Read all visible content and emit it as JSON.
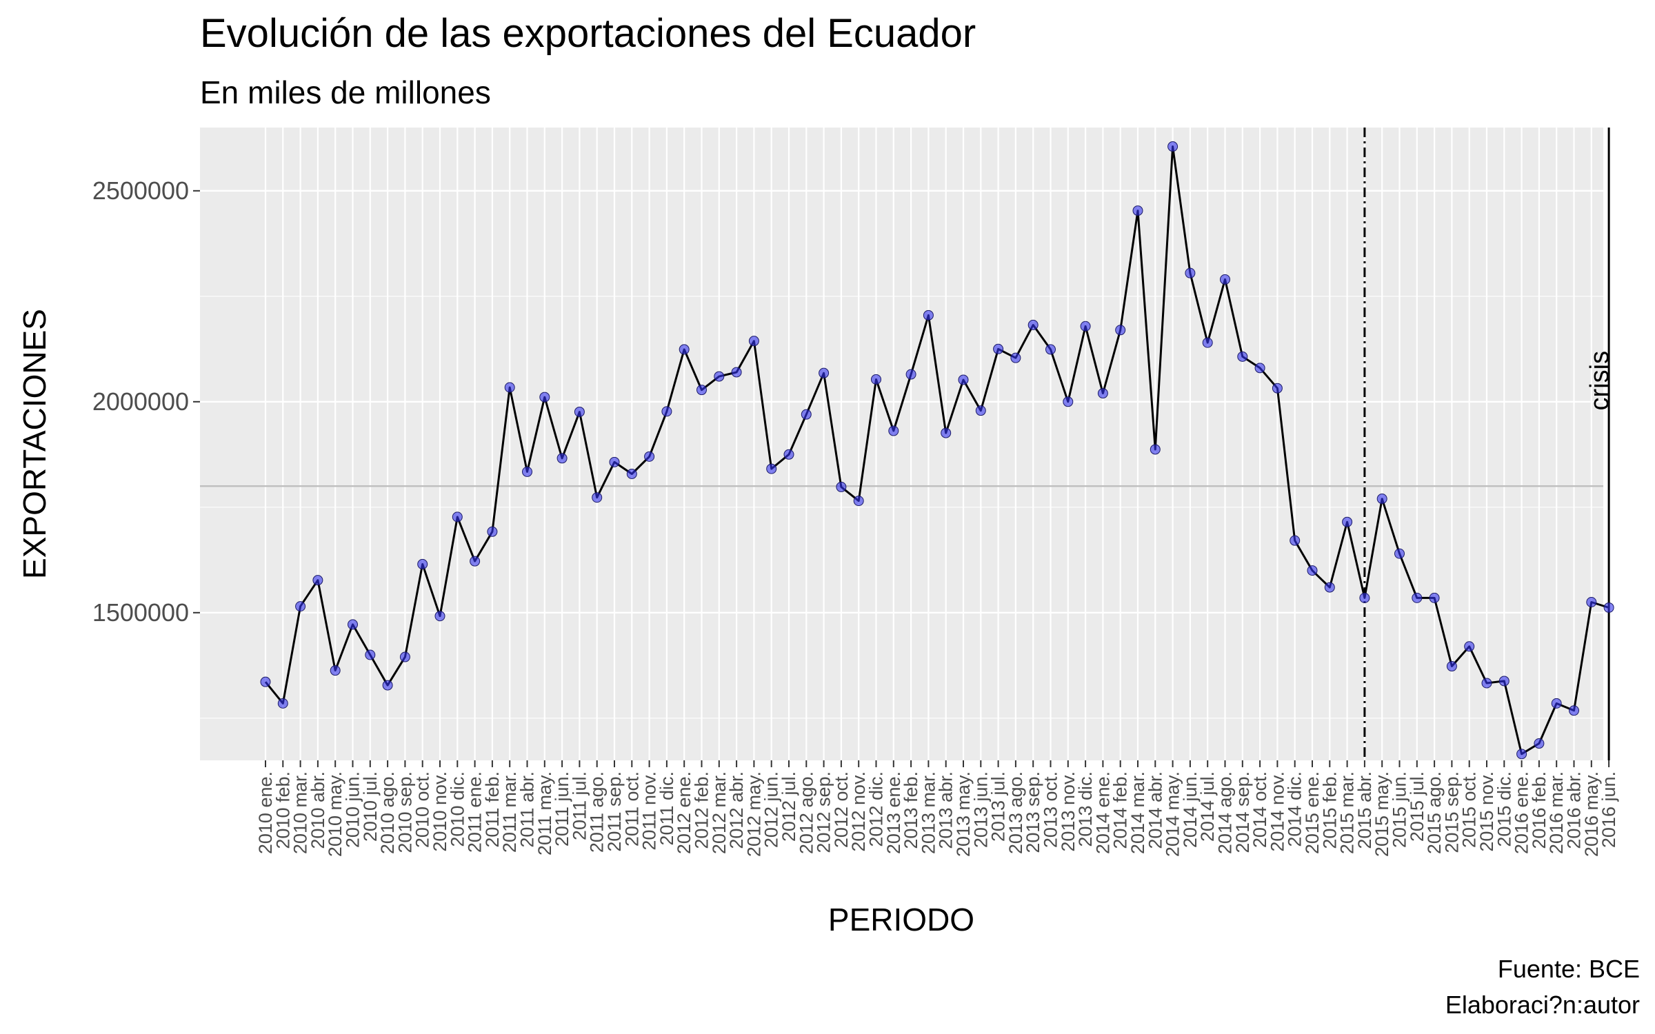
{
  "chart_data": {
    "type": "line",
    "title": "Evolución de las exportaciones del Ecuador",
    "subtitle": "En miles de millones",
    "xlabel": "PERIODO",
    "ylabel": "EXPORTACIONES",
    "caption": [
      "Fuente: BCE",
      "Elaboraci?n:autor"
    ],
    "ylim": [
      1150000,
      2650000
    ],
    "yticks": [
      1500000,
      2000000,
      2500000
    ],
    "ytick_labels": [
      "1500000",
      "2000000",
      "2500000"
    ],
    "grid": true,
    "categories": [
      "2010 ene.",
      "2010 feb.",
      "2010 mar.",
      "2010 abr.",
      "2010 may.",
      "2010 jun.",
      "2010 jul.",
      "2010 ago.",
      "2010 sep.",
      "2010 oct.",
      "2010 nov.",
      "2010 dic.",
      "2011 ene.",
      "2011 feb.",
      "2011 mar.",
      "2011 abr.",
      "2011 may.",
      "2011 jun.",
      "2011 jul.",
      "2011 ago.",
      "2011 sep.",
      "2011 oct.",
      "2011 nov.",
      "2011 dic.",
      "2012 ene.",
      "2012 feb.",
      "2012 mar.",
      "2012 abr.",
      "2012 may.",
      "2012 jun.",
      "2012 jul.",
      "2012 ago.",
      "2012 sep.",
      "2012 oct.",
      "2012 nov.",
      "2012 dic.",
      "2013 ene.",
      "2013 feb.",
      "2013 mar.",
      "2013 abr.",
      "2013 may.",
      "2013 jun.",
      "2013 jul.",
      "2013 ago.",
      "2013 sep.",
      "2013 oct.",
      "2013 nov.",
      "2013 dic.",
      "2014 ene.",
      "2014 feb.",
      "2014 mar.",
      "2014 abr.",
      "2014 may.",
      "2014 jun.",
      "2014 jul.",
      "2014 ago.",
      "2014 sep.",
      "2014 oct.",
      "2014 nov.",
      "2014 dic.",
      "2015 ene.",
      "2015 feb.",
      "2015 mar.",
      "2015 abr.",
      "2015 may.",
      "2015 jun.",
      "2015 jul.",
      "2015 ago.",
      "2015 sep.",
      "2015 oct.",
      "2015 nov.",
      "2015 dic.",
      "2016 ene.",
      "2016 feb.",
      "2016 mar.",
      "2016 abr.",
      "2016 may.",
      "2016 jun."
    ],
    "values": [
      1336000,
      1285000,
      1515000,
      1577000,
      1363000,
      1472000,
      1400000,
      1328000,
      1395000,
      1615000,
      1492000,
      1727000,
      1622000,
      1692000,
      2034000,
      1834000,
      2011000,
      1866000,
      1976000,
      1773000,
      1857000,
      1829000,
      1870000,
      1977000,
      2124000,
      2028000,
      2060000,
      2070000,
      2144000,
      1841000,
      1875000,
      1970000,
      2068000,
      1798000,
      1765000,
      2053000,
      1931000,
      2065000,
      2205000,
      1926000,
      2052000,
      1979000,
      2125000,
      2104000,
      2182000,
      2124000,
      2000000,
      2179000,
      2020000,
      2170000,
      2453000,
      1887000,
      2605000,
      2305000,
      2140000,
      2290000,
      2107000,
      2080000,
      2032000,
      1671000,
      1600000,
      1560000,
      1715000,
      1535000,
      1770000,
      1640000,
      1535000,
      1535000,
      1373000,
      1420000,
      1333000,
      1338000,
      1165000,
      1190000,
      1285000,
      1268000,
      1525000,
      1512000
    ],
    "point_color": "#3333ee",
    "line_color": "#000000",
    "panel_color": "#ebebeb",
    "hline": {
      "y": 1800000,
      "color": "#bebebe"
    },
    "vlines": [
      {
        "category": "2015 abr.",
        "style": "dotdash"
      },
      {
        "category": "2016 jun.",
        "style": "solid",
        "label": "crisis"
      }
    ]
  }
}
